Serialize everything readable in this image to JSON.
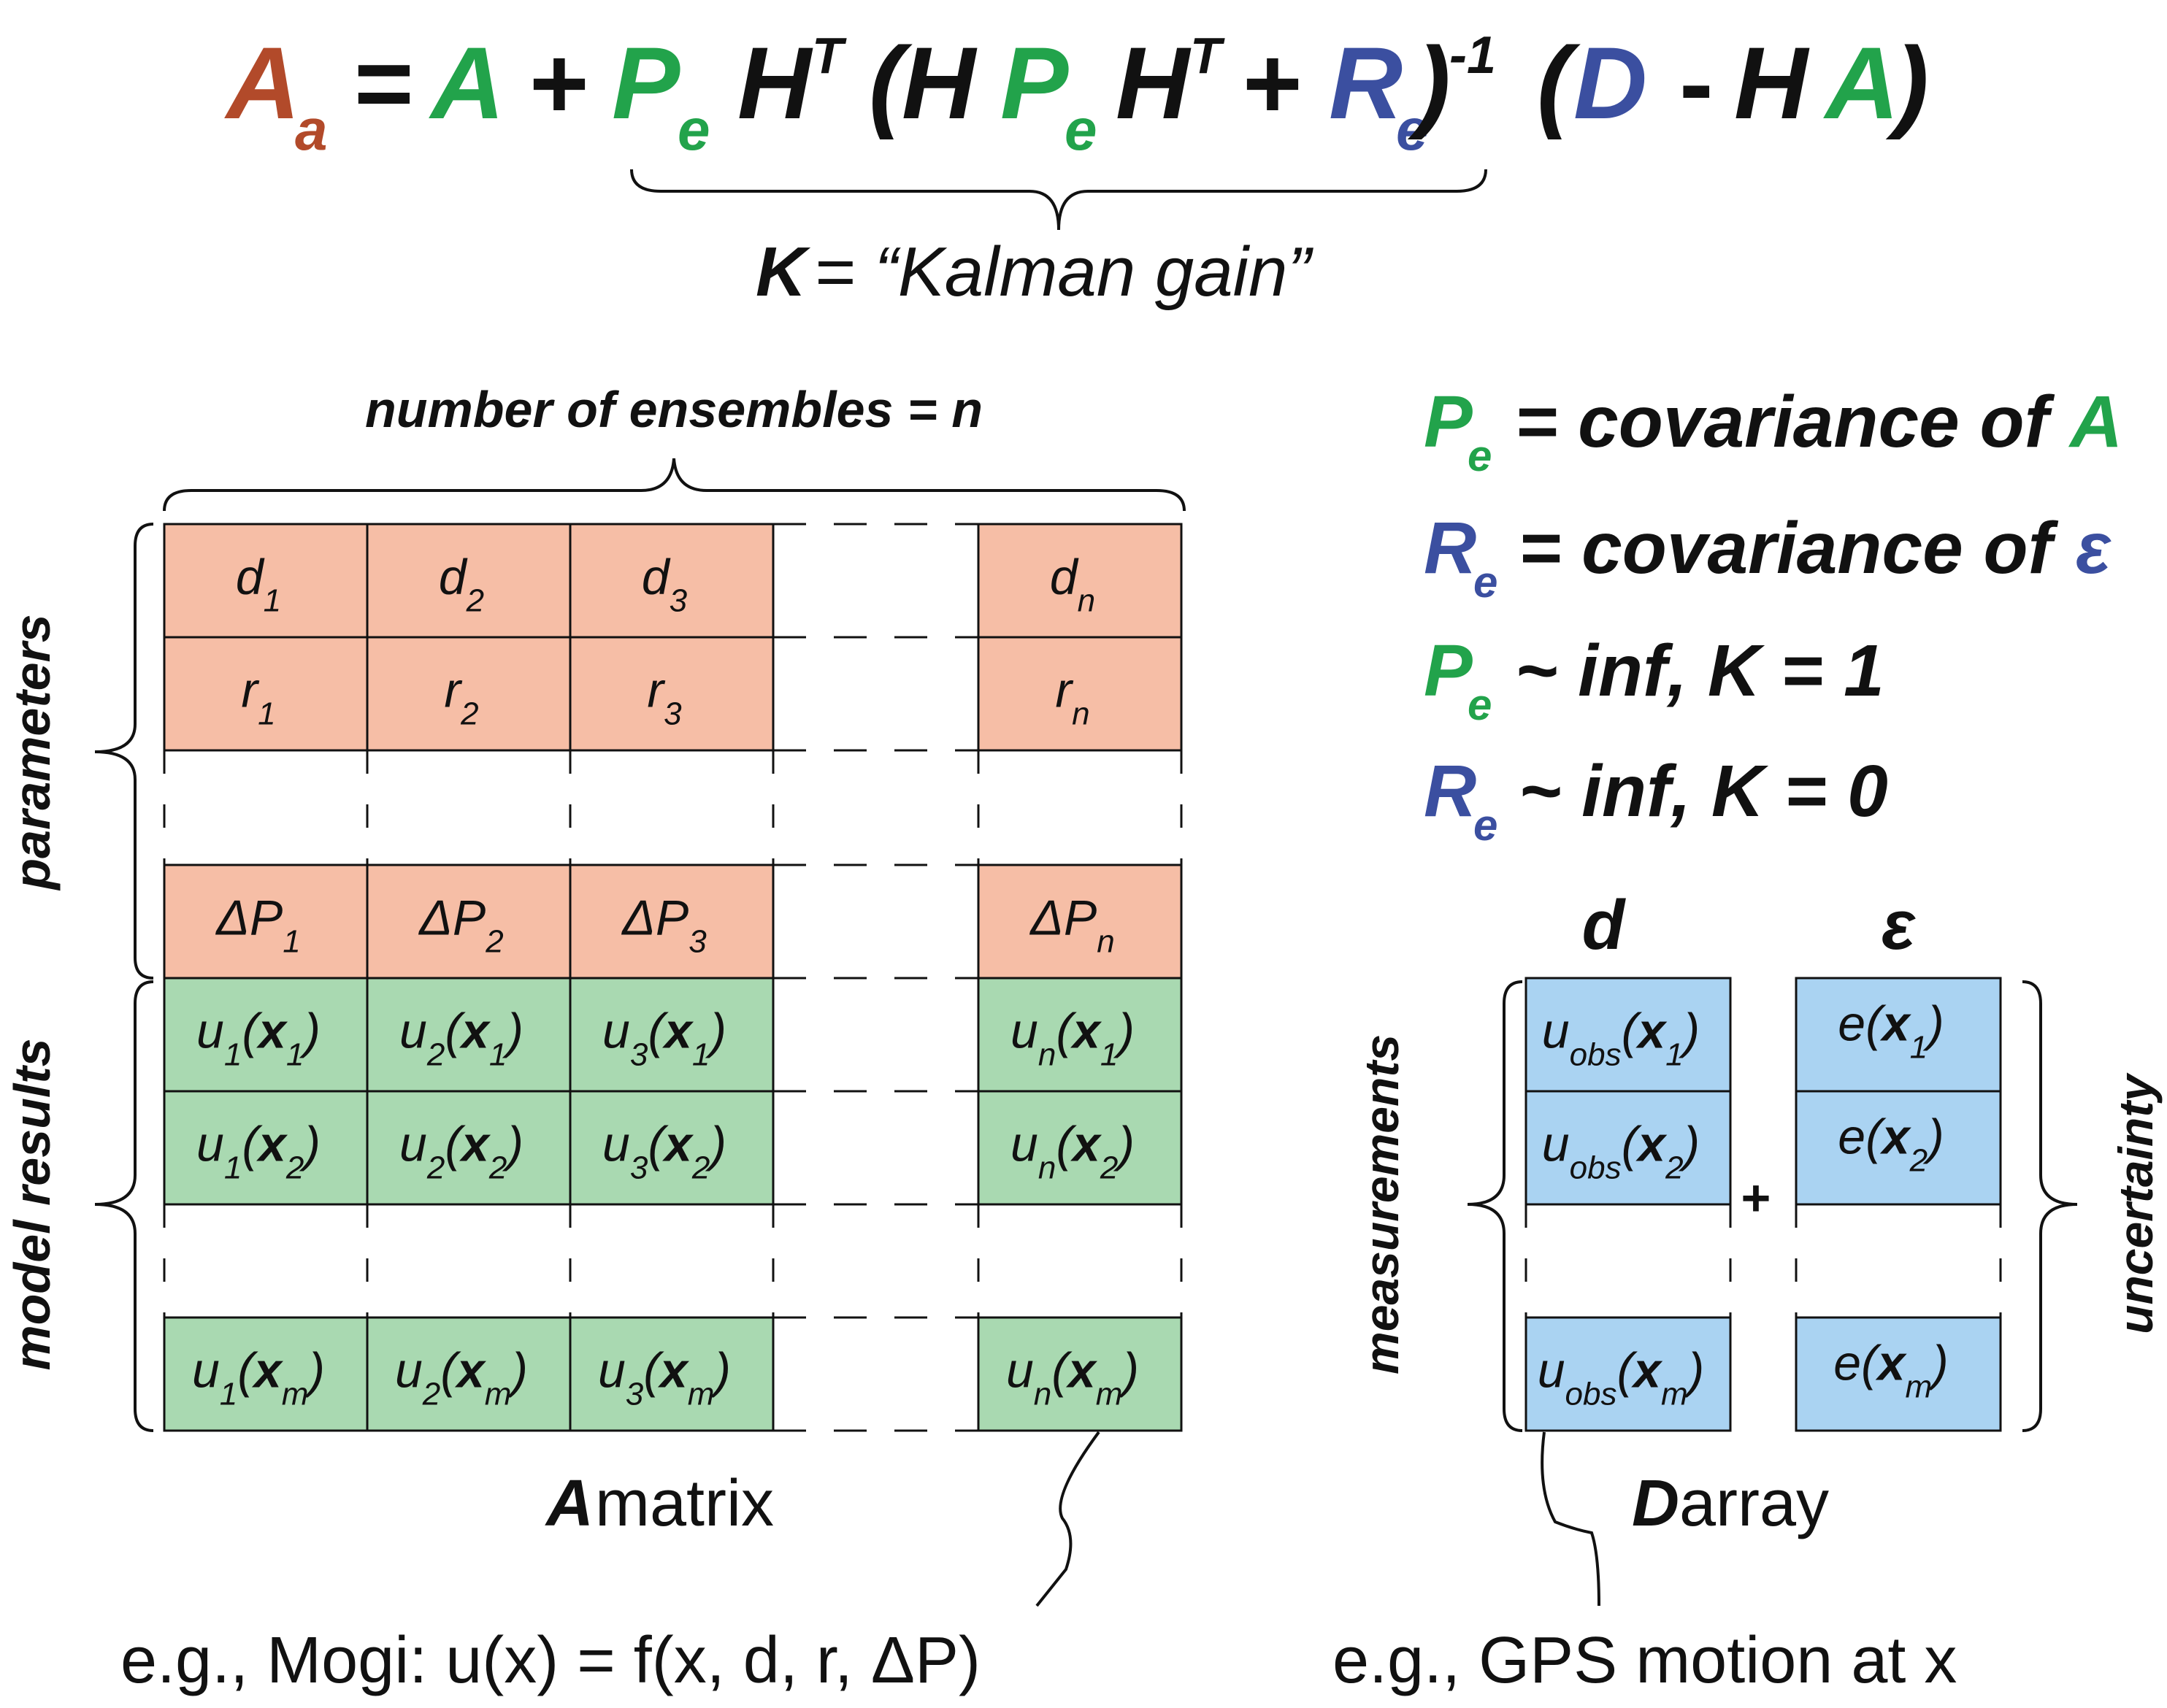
{
  "colors": {
    "brown": "#b24a2a",
    "green": "#22a34b",
    "blue": "#3b4fa0",
    "black": "#111111",
    "param_fill": "#f6bea6",
    "result_fill": "#a9d9b1",
    "meas_fill": "#aad3f2"
  },
  "equation": {
    "lhs": "A",
    "lhs_sub": "a",
    "eq": "=",
    "a": "A",
    "plus": "+",
    "p": "P",
    "sub_e": "e",
    "h": "H",
    "sup_t": "T",
    "open_paren": "(",
    "close_paren": ")",
    "r": "R",
    "sup_inv": "-1",
    "d": "D",
    "minus": "-",
    "kalman_k": "K",
    "kalman_text": "= “Kalman gain”"
  },
  "legend": {
    "line1": {
      "sym": "P",
      "sub": "e",
      "text": "= covariance of",
      "target": "A"
    },
    "line2": {
      "sym": "R",
      "sub": "e",
      "text": "= covariance of",
      "target": "ε"
    },
    "line3": {
      "sym": "P",
      "sub": "e",
      "text": "~ inf, K = 1"
    },
    "line4": {
      "sym": "R",
      "sub": "e",
      "text": "~ inf, K = 0"
    }
  },
  "a_matrix": {
    "ensembles_label": "number of ensembles = n",
    "parameters_label": "parameters",
    "model_results_label": "model results",
    "caption_bold": "A",
    "caption_rest": " matrix",
    "rows": [
      {
        "kind": "param",
        "base": "d",
        "subs": [
          "1",
          "2",
          "3",
          "n"
        ]
      },
      {
        "kind": "param",
        "base": "r",
        "subs": [
          "1",
          "2",
          "3",
          "n"
        ]
      },
      {
        "kind": "param",
        "base": "ΔP",
        "subs": [
          "1",
          "2",
          "3",
          "n"
        ]
      },
      {
        "kind": "result",
        "base": "u",
        "subs": [
          "1",
          "2",
          "3",
          "n"
        ],
        "x": "x",
        "xsub": "1"
      },
      {
        "kind": "result",
        "base": "u",
        "subs": [
          "1",
          "2",
          "3",
          "n"
        ],
        "x": "x",
        "xsub": "2"
      },
      {
        "kind": "result",
        "base": "u",
        "subs": [
          "1",
          "2",
          "3",
          "n"
        ],
        "x": "x",
        "xsub": "m"
      }
    ],
    "example": "e.g., Mogi: u(x) = f(x, d, r, ΔP)"
  },
  "d_array": {
    "d_header": "d",
    "eps_header": "ε",
    "measurements_label": "measurements",
    "uncertainty_label": "uncertainty",
    "plus": "+",
    "caption_bold": "D",
    "caption_rest": " array",
    "obs_base": "u",
    "obs_sub": "obs",
    "err_base": "e",
    "x": "x",
    "xsubs": [
      "1",
      "2",
      "m"
    ],
    "example": "e.g., GPS motion at x"
  }
}
